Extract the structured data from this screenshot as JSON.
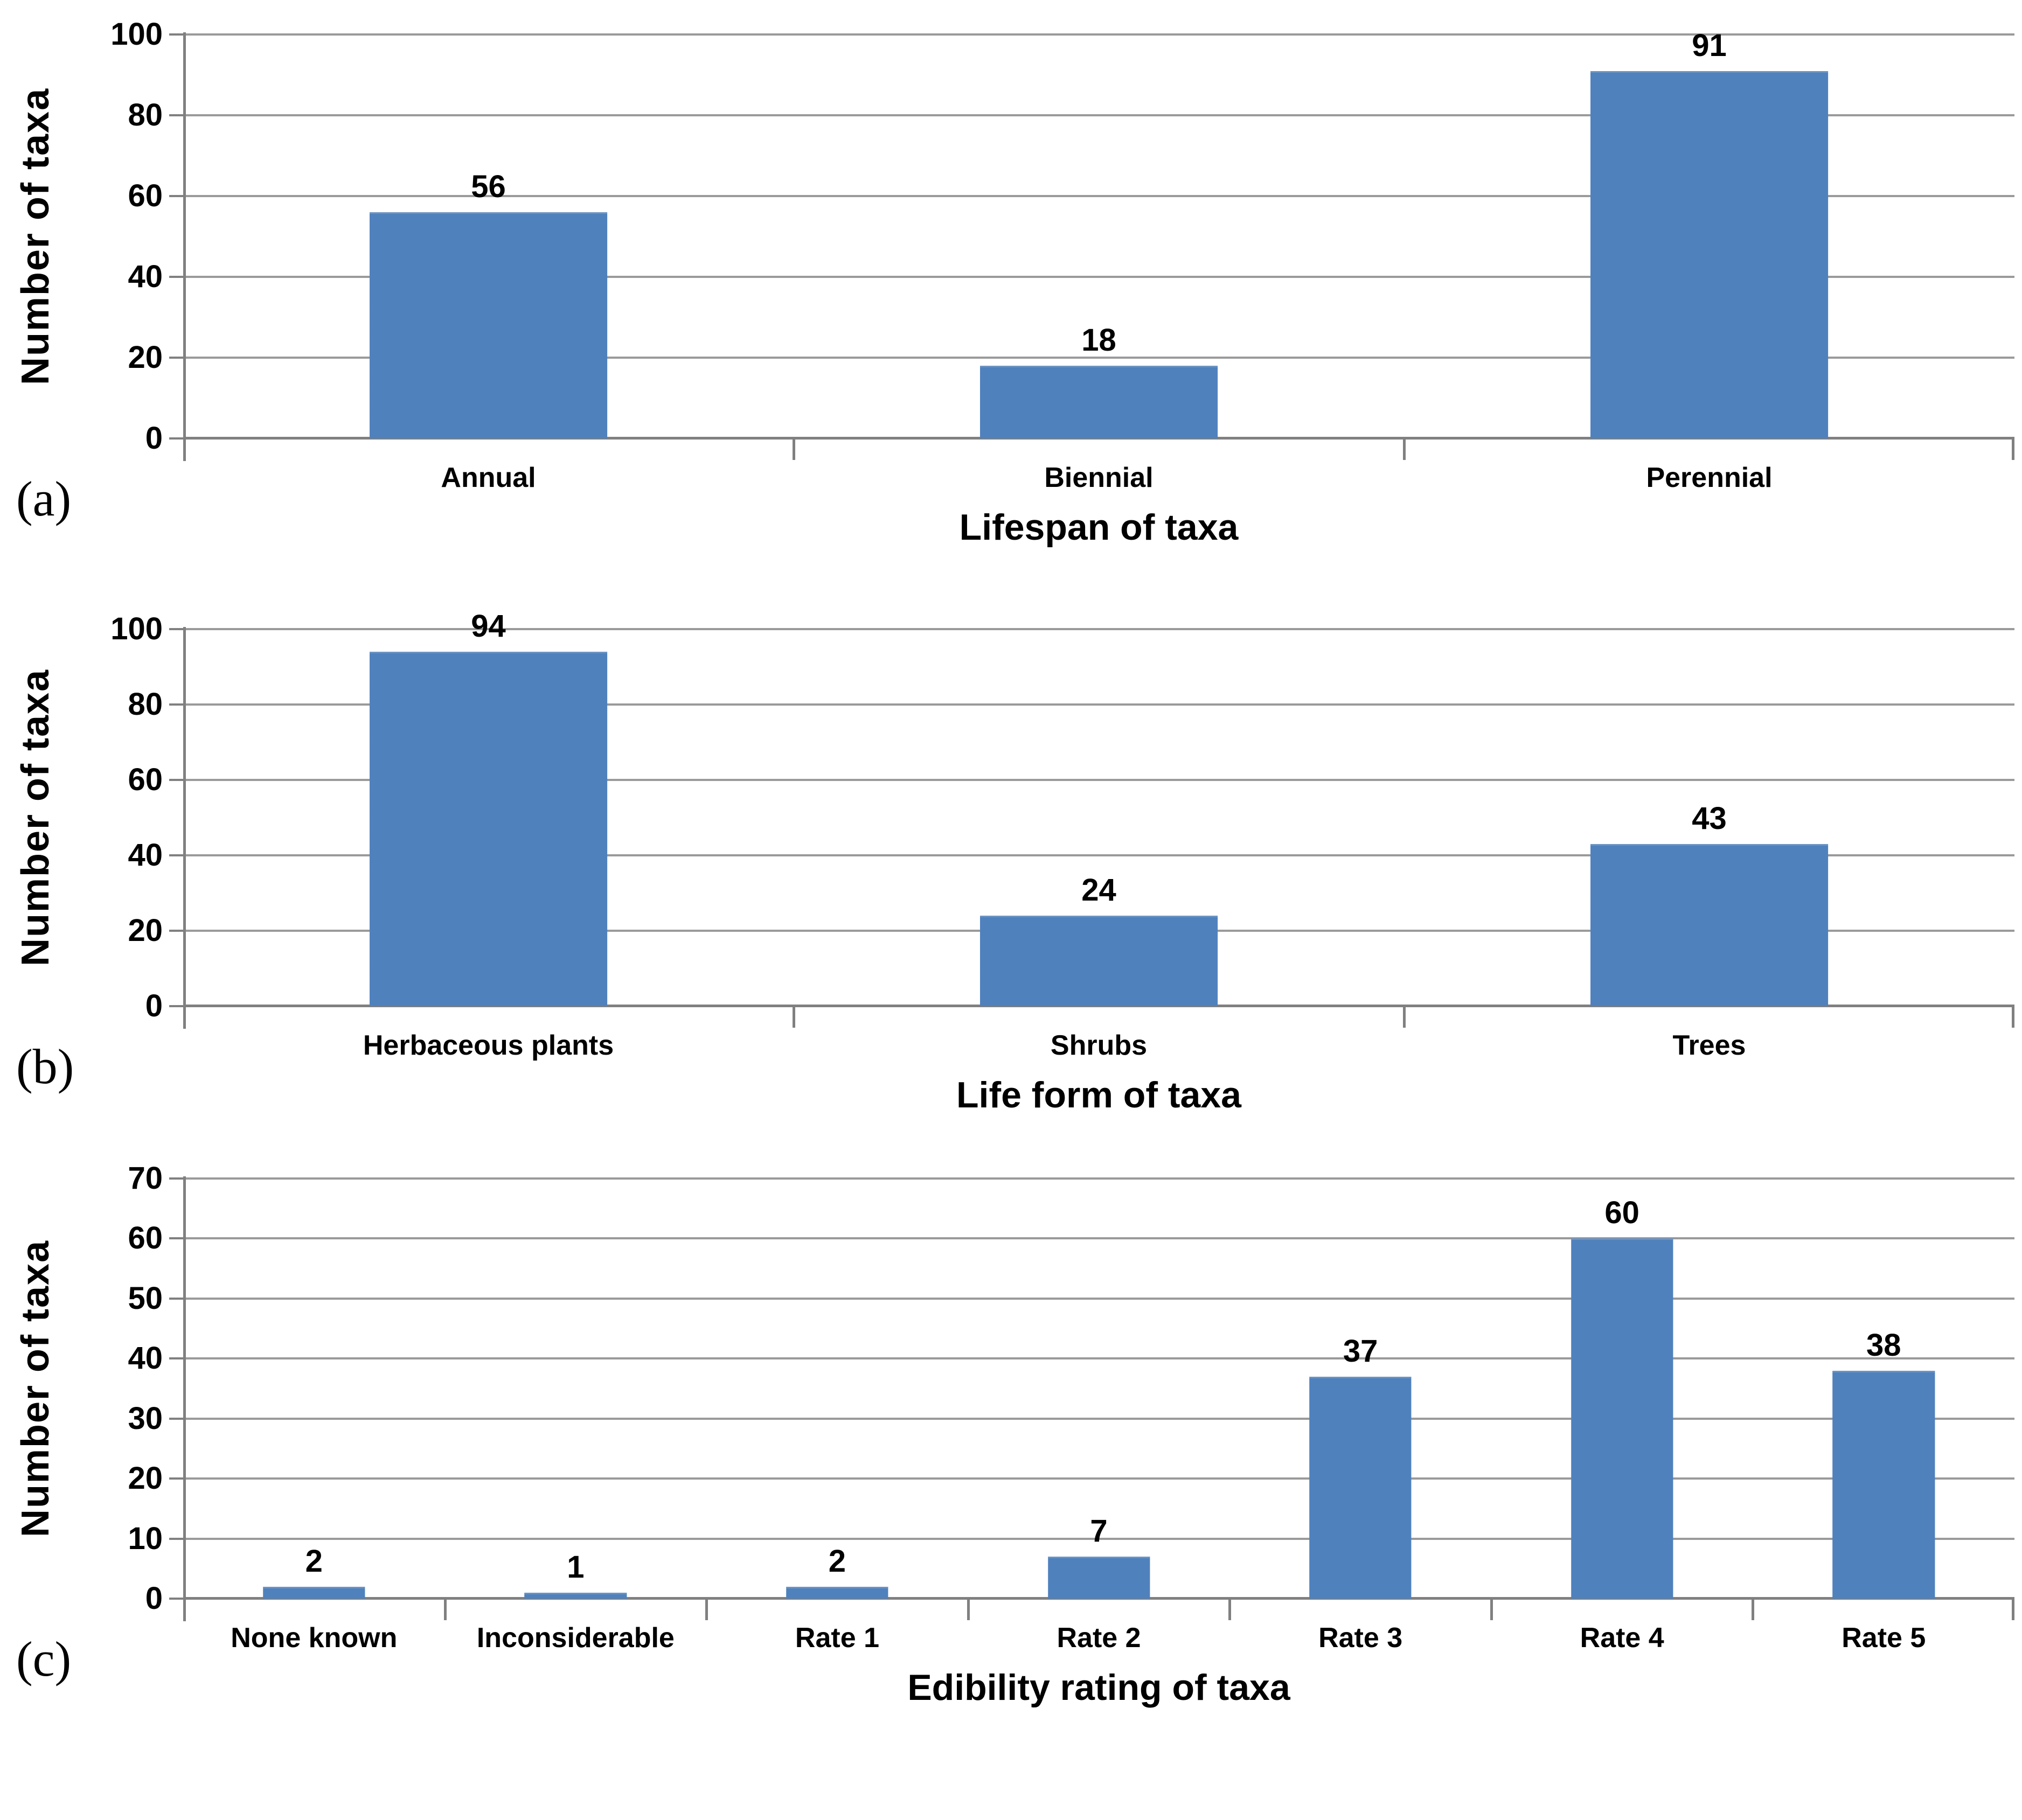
{
  "panels": [
    {
      "label": "(a)"
    },
    {
      "label": "(b)"
    },
    {
      "label": "(c)"
    }
  ],
  "colors": {
    "bar": "#4F81BD",
    "gridline": "#9A9A9A",
    "axis": "#808080",
    "text": "#000000"
  },
  "chart_data": [
    {
      "type": "bar",
      "categories": [
        "Annual",
        "Biennial",
        "Perennial"
      ],
      "values": [
        56,
        18,
        91
      ],
      "title": "",
      "xlabel": "Lifespan of taxa",
      "ylabel": "Number of taxa",
      "ylim": [
        0,
        100
      ],
      "ytick_step": 20,
      "yticks": [
        0,
        20,
        40,
        60,
        80,
        100
      ],
      "grid": true,
      "legend_position": "none",
      "data_labels": true
    },
    {
      "type": "bar",
      "categories": [
        "Herbaceous plants",
        "Shrubs",
        "Trees"
      ],
      "values": [
        94,
        24,
        43
      ],
      "title": "",
      "xlabel": "Life form of taxa",
      "ylabel": "Number of taxa",
      "ylim": [
        0,
        100
      ],
      "ytick_step": 20,
      "yticks": [
        0,
        20,
        40,
        60,
        80,
        100
      ],
      "grid": true,
      "legend_position": "none",
      "data_labels": true
    },
    {
      "type": "bar",
      "categories": [
        "None known",
        "Inconsiderable",
        "Rate 1",
        "Rate 2",
        "Rate 3",
        "Rate 4",
        "Rate 5"
      ],
      "values": [
        2,
        1,
        2,
        7,
        37,
        60,
        38
      ],
      "title": "",
      "xlabel": "Edibility rating of taxa",
      "ylabel": "Number of taxa",
      "ylim": [
        0,
        70
      ],
      "ytick_step": 10,
      "yticks": [
        0,
        10,
        20,
        30,
        40,
        50,
        60,
        70
      ],
      "grid": true,
      "legend_position": "none",
      "data_labels": true
    }
  ]
}
